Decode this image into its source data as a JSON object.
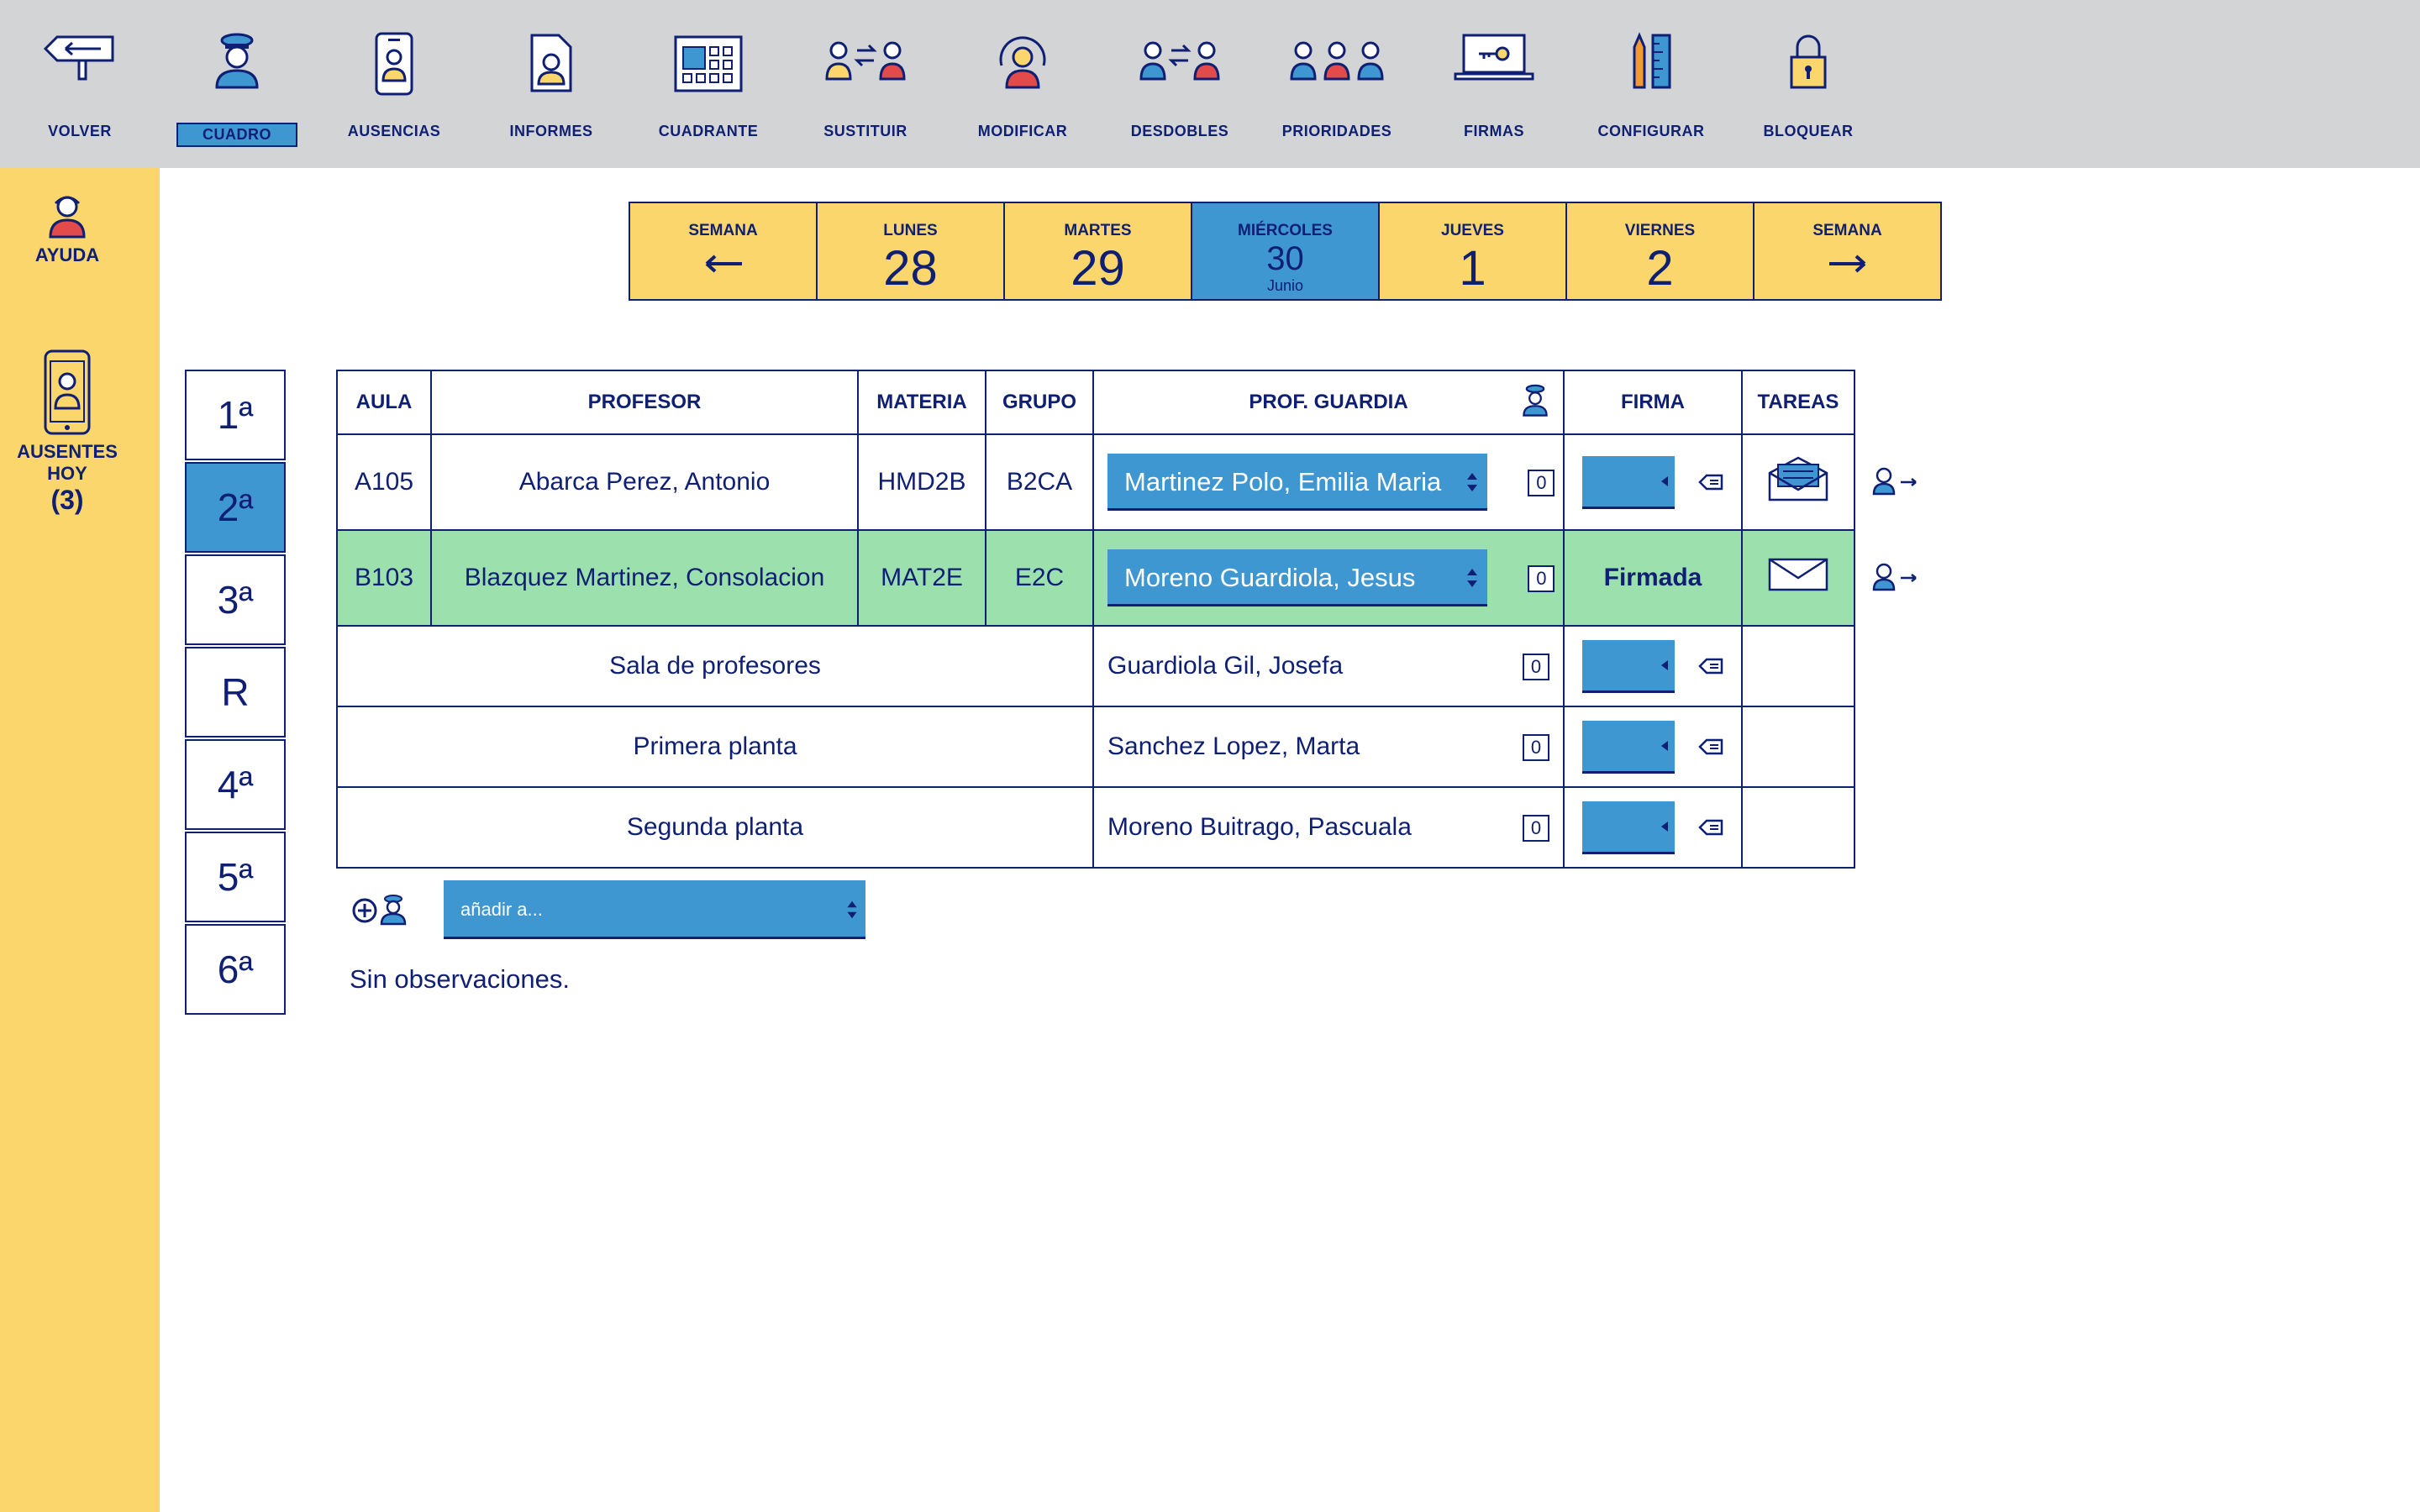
{
  "toolbar": {
    "items": [
      {
        "label": "VOLVER",
        "icon": "signpost-back-icon"
      },
      {
        "label": "CUADRO",
        "icon": "guard-teacher-icon",
        "active": true
      },
      {
        "label": "AUSENCIAS",
        "icon": "phone-person-icon"
      },
      {
        "label": "INFORMES",
        "icon": "report-document-icon"
      },
      {
        "label": "CUADRANTE",
        "icon": "calendar-grid-icon"
      },
      {
        "label": "SUSTITUIR",
        "icon": "swap-people-icon"
      },
      {
        "label": "MODIFICAR",
        "icon": "modify-person-icon"
      },
      {
        "label": "DESDOBLES",
        "icon": "split-group-icon"
      },
      {
        "label": "PRIORIDADES",
        "icon": "priority-people-icon"
      },
      {
        "label": "FIRMAS",
        "icon": "laptop-key-icon"
      },
      {
        "label": "CONFIGURAR",
        "icon": "ruler-pencil-icon"
      },
      {
        "label": "BLOQUEAR",
        "icon": "padlock-icon"
      }
    ]
  },
  "sidebar": {
    "help_label": "AYUDA",
    "absent_label_1": "AUSENTES",
    "absent_label_2": "HOY",
    "absent_count": "(3)"
  },
  "week": {
    "prev_label": "SEMANA",
    "next_label": "SEMANA",
    "days": [
      {
        "name": "LUNES",
        "num": "28"
      },
      {
        "name": "MARTES",
        "num": "29"
      },
      {
        "name": "MIÉRCOLES",
        "num": "30",
        "month": "Junio",
        "active": true
      },
      {
        "name": "JUEVES",
        "num": "1"
      },
      {
        "name": "VIERNES",
        "num": "2"
      }
    ]
  },
  "periods": [
    "1ª",
    "2ª",
    "3ª",
    "R",
    "4ª",
    "5ª",
    "6ª"
  ],
  "active_period": "2ª",
  "table": {
    "headers": {
      "aula": "AULA",
      "profesor": "PROFESOR",
      "materia": "MATERIA",
      "grupo": "GRUPO",
      "guardia": "PROF. GUARDIA",
      "firma": "FIRMA",
      "tareas": "TAREAS"
    },
    "rows": [
      {
        "aula": "A105",
        "profesor": "Abarca Perez, Antonio",
        "materia": "HMD2B",
        "grupo": "B2CA",
        "guardia": "Martinez Polo, Emilia Maria",
        "count": "0"
      },
      {
        "aula": "B103",
        "profesor": "Blazquez Martinez, Consolacion",
        "materia": "MAT2E",
        "grupo": "E2C",
        "guardia": "Moreno Guardiola, Jesus",
        "count": "0",
        "firma": "Firmada"
      }
    ],
    "places": [
      {
        "place": "Sala de profesores",
        "guardia": "Guardiola Gil, Josefa",
        "count": "0"
      },
      {
        "place": "Primera planta",
        "guardia": "Sanchez Lopez, Marta",
        "count": "0"
      },
      {
        "place": "Segunda planta",
        "guardia": "Moreno Buitrago, Pascuala",
        "count": "0"
      }
    ]
  },
  "add": {
    "placeholder": "añadir a..."
  },
  "observations": "Sin observaciones.",
  "colors": {
    "navy": "#0f1f73",
    "blue": "#3f97d2",
    "yellow": "#fad66c",
    "green": "#9ce0ad",
    "gray": "#d3d4d6"
  }
}
